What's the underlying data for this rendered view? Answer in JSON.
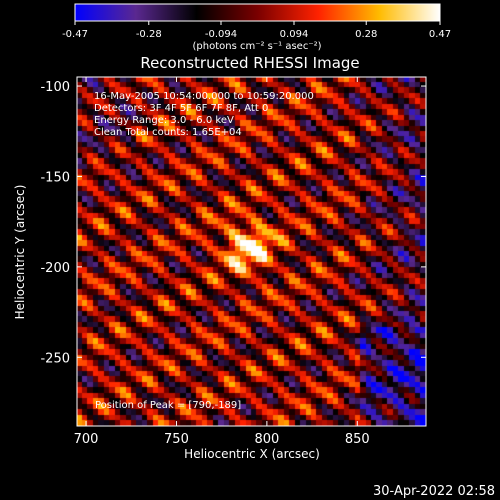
{
  "chart_data": {
    "type": "heatmap",
    "title": "Reconstructed RHESSI Image",
    "xlabel": "Heliocentric X (arcsec)",
    "ylabel": "Heliocentric Y (arcsec)",
    "xlim": [
      695,
      888
    ],
    "ylim": [
      -288,
      -95
    ],
    "x_ticks": [
      700,
      750,
      800,
      850
    ],
    "y_ticks": [
      -100,
      -150,
      -200,
      -250
    ],
    "colorbar": {
      "min": -0.47,
      "max": 0.47,
      "ticks": [
        "-0.47",
        "-0.28",
        "-0.094",
        "0.094",
        "0.28",
        "0.47"
      ],
      "unit_label": "(photons cm⁻² s⁻¹ asec⁻²)",
      "colormap": [
        "#0000ff",
        "#5a2890",
        "#000000",
        "#7a0000",
        "#ff2200",
        "#ffbb00",
        "#ffffff"
      ]
    },
    "annotations": [
      "16-May-2005 10:54:00.000 to 10:59:20.000",
      "Detectors: 3F 4F 5F 6F 7F 8F, Att 0",
      "Energy Range: 3.0 - 6.0 keV",
      "Clean    Total counts: 1.65E+04"
    ],
    "peak_label": "Position of Peak = [790,-189]",
    "peak": {
      "x": 790,
      "y": -189,
      "value": 0.47
    },
    "timestamp": "30-Apr-2022 02:58"
  }
}
